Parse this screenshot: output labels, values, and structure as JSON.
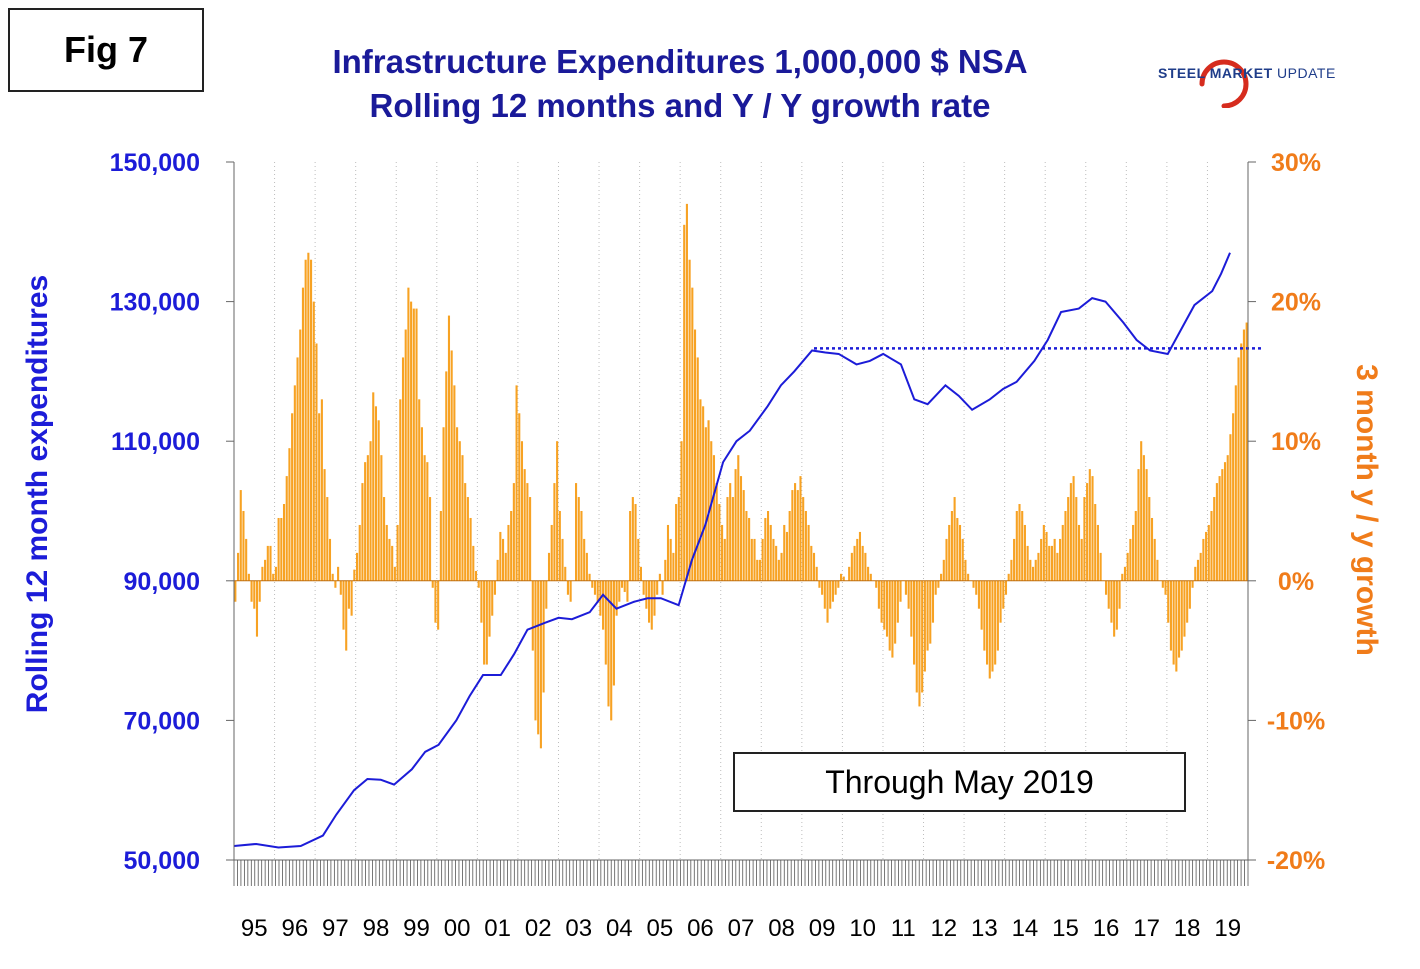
{
  "figure": {
    "label": "Fig 7",
    "title_line1": "Infrastructure Expenditures 1,000,000 $ NSA",
    "title_line2": "Rolling 12 months and Y / Y growth rate",
    "logo_bold": "STEEL MARKET",
    "logo_light": "UPDATE",
    "note": "Through May 2019"
  },
  "chart_data": {
    "type": "bar",
    "left_axis": {
      "label": "Rolling 12 month expenditures",
      "min": 50000,
      "max": 150000,
      "ticks": [
        "50,000",
        "70,000",
        "90,000",
        "110,000",
        "130,000",
        "150,000"
      ],
      "color": "#1c1cd8"
    },
    "right_axis": {
      "label": "3 month y / y growth",
      "min": -20,
      "max": 30,
      "ticks": [
        "-20%",
        "-10%",
        "0%",
        "10%",
        "20%",
        "30%"
      ],
      "color": "#f07c1a"
    },
    "x_axis": {
      "categories": [
        "95",
        "96",
        "97",
        "98",
        "99",
        "00",
        "01",
        "02",
        "03",
        "04",
        "05",
        "06",
        "07",
        "08",
        "09",
        "10",
        "11",
        "12",
        "13",
        "14",
        "15",
        "16",
        "17",
        "18",
        "19"
      ]
    },
    "grid": "vertical-dotted",
    "series": [
      {
        "name": "Rolling 12 month expenditures",
        "type": "line",
        "axis": "left",
        "color": "#1c1cd8",
        "points": [
          [
            1995.0,
            52000
          ],
          [
            1995.5,
            52300
          ],
          [
            1996.0,
            51800
          ],
          [
            1996.5,
            52000
          ],
          [
            1997.0,
            53500
          ],
          [
            1997.3,
            56500
          ],
          [
            1997.7,
            60000
          ],
          [
            1998.0,
            61600
          ],
          [
            1998.3,
            61500
          ],
          [
            1998.6,
            60800
          ],
          [
            1999.0,
            63000
          ],
          [
            1999.3,
            65500
          ],
          [
            1999.6,
            66500
          ],
          [
            2000.0,
            70000
          ],
          [
            2000.3,
            73500
          ],
          [
            2000.6,
            76500
          ],
          [
            2001.0,
            76500
          ],
          [
            2001.3,
            79500
          ],
          [
            2001.6,
            83000
          ],
          [
            2002.0,
            84000
          ],
          [
            2002.3,
            84700
          ],
          [
            2002.6,
            84500
          ],
          [
            2003.0,
            85500
          ],
          [
            2003.3,
            88000
          ],
          [
            2003.6,
            86000
          ],
          [
            2004.0,
            87000
          ],
          [
            2004.3,
            87500
          ],
          [
            2004.6,
            87500
          ],
          [
            2005.0,
            86500
          ],
          [
            2005.3,
            93000
          ],
          [
            2005.6,
            98000
          ],
          [
            2006.0,
            107000
          ],
          [
            2006.3,
            110000
          ],
          [
            2006.6,
            111500
          ],
          [
            2007.0,
            115000
          ],
          [
            2007.3,
            118000
          ],
          [
            2007.6,
            120000
          ],
          [
            2008.0,
            123000
          ],
          [
            2008.3,
            122700
          ],
          [
            2008.6,
            122500
          ],
          [
            2009.0,
            121000
          ],
          [
            2009.3,
            121500
          ],
          [
            2009.6,
            122500
          ],
          [
            2010.0,
            121000
          ],
          [
            2010.3,
            116000
          ],
          [
            2010.6,
            115300
          ],
          [
            2011.0,
            118000
          ],
          [
            2011.3,
            116500
          ],
          [
            2011.6,
            114500
          ],
          [
            2012.0,
            116000
          ],
          [
            2012.3,
            117500
          ],
          [
            2012.6,
            118500
          ],
          [
            2013.0,
            121500
          ],
          [
            2013.3,
            124500
          ],
          [
            2013.6,
            128500
          ],
          [
            2014.0,
            129000
          ],
          [
            2014.3,
            130500
          ],
          [
            2014.6,
            130000
          ],
          [
            2015.0,
            127000
          ],
          [
            2015.3,
            124500
          ],
          [
            2015.6,
            123000
          ],
          [
            2016.0,
            122500
          ],
          [
            2016.3,
            126000
          ],
          [
            2016.6,
            129500
          ],
          [
            2017.0,
            131500
          ],
          [
            2017.2,
            134000
          ],
          [
            2017.4,
            137000
          ]
        ]
      },
      {
        "name": "3 month y / y growth",
        "type": "bar",
        "axis": "right",
        "color": "#f7a223",
        "values": [
          -1.5,
          2,
          6.5,
          5,
          3,
          0.5,
          -1.5,
          -2,
          -4,
          -1.5,
          1,
          1.5,
          2.5,
          2.5,
          0.5,
          1,
          4.5,
          4.5,
          5.5,
          7.5,
          9.5,
          12,
          14,
          16,
          18,
          21,
          23,
          23.5,
          23,
          20,
          17,
          12,
          13,
          8,
          6,
          3,
          0.5,
          -0.5,
          1,
          -1,
          -3.5,
          -5,
          -2,
          -2.5,
          0.8,
          2,
          4,
          7,
          8.5,
          9,
          10,
          13.5,
          12.5,
          11.5,
          9,
          6,
          4,
          3,
          2.5,
          1,
          4,
          13,
          16,
          18,
          21,
          20,
          19.5,
          19.5,
          13,
          11,
          9,
          8.5,
          6,
          -0.5,
          -3,
          -3.5,
          5,
          11,
          15,
          19,
          16.5,
          14,
          11,
          10,
          9,
          7,
          6,
          4.5,
          2.5,
          0.7,
          -0.5,
          -3,
          -6,
          -6,
          -4,
          -2.5,
          -1,
          1.5,
          3.5,
          3,
          2,
          4,
          5,
          7,
          14,
          12,
          10,
          8,
          7,
          6,
          -5,
          -10,
          -11,
          -12,
          -8,
          -2,
          2,
          4,
          7,
          10,
          5,
          3,
          1,
          -1,
          -1.5,
          0,
          7,
          6,
          5,
          3,
          2,
          0.5,
          -0.5,
          -1,
          -1.5,
          -2.5,
          -3.5,
          -6,
          -9,
          -10,
          -7.5,
          -2.5,
          -1.5,
          -0.5,
          -0.8,
          -1.5,
          5,
          6,
          5.5,
          3,
          1,
          -1,
          -2,
          -3,
          -3.5,
          -2.5,
          -1,
          0.5,
          -1,
          1.5,
          4,
          3,
          2,
          5.5,
          6,
          10,
          25.5,
          27,
          23,
          21,
          18,
          16,
          13,
          12.5,
          11,
          11.5,
          10,
          9,
          7,
          5.5,
          4,
          3,
          6,
          7,
          6,
          8,
          9,
          7.5,
          6.5,
          5,
          4.5,
          3,
          3,
          1.5,
          1.5,
          3,
          4.5,
          5,
          4,
          3,
          2.5,
          1.5,
          2,
          4,
          3.5,
          5,
          6.5,
          7,
          6.5,
          7.5,
          6,
          5,
          4,
          2.5,
          2,
          1,
          -0.5,
          -1,
          -2,
          -3,
          -2,
          -1.5,
          -1,
          -0.5,
          0.5,
          0.3,
          0,
          1,
          2,
          2.5,
          3,
          3.5,
          2.5,
          2,
          1,
          0.5,
          0,
          -0.5,
          -2,
          -3,
          -3.5,
          -4,
          -5,
          -5.5,
          -4.5,
          -3,
          -1.5,
          0,
          -1,
          -2,
          -4,
          -6,
          -8,
          -9,
          -8,
          -6.5,
          -5,
          -4.5,
          -3,
          -1,
          -0.5,
          0.5,
          1.5,
          3,
          4,
          5,
          6,
          4.5,
          4,
          3,
          1.5,
          0.5,
          0,
          -0.5,
          -1,
          -2,
          -3.5,
          -5,
          -6,
          -7,
          -6.5,
          -6,
          -5,
          -3,
          -2,
          -1,
          0.5,
          1.5,
          3,
          5,
          5.5,
          5,
          4,
          2.5,
          1.5,
          1,
          1.5,
          2,
          3,
          4,
          3.5,
          2.5,
          2.5,
          3,
          2,
          3,
          4,
          5,
          6,
          7,
          7.5,
          6,
          4,
          3,
          6,
          7,
          8,
          7.5,
          5.5,
          4,
          2,
          0,
          -1,
          -2,
          -3,
          -4,
          -3.5,
          -2,
          0.5,
          1,
          2,
          3,
          4,
          5,
          8,
          10,
          9,
          8,
          6,
          4.5,
          3,
          1.5,
          0,
          -0.5,
          -1,
          -3,
          -5,
          -6,
          -6.5,
          -5.5,
          -5,
          -4,
          -3,
          -2,
          -0.5,
          1,
          1.5,
          2,
          3,
          3.5,
          4,
          5,
          6,
          7,
          7.5,
          8,
          8.5,
          9,
          10.5,
          12,
          14,
          16,
          17,
          18,
          18.5
        ]
      },
      {
        "name": "Reference level",
        "type": "dotted-line",
        "axis": "left",
        "color": "#1c1cd8",
        "x": [
          2009.0,
          2019.7
        ],
        "y": 123300
      }
    ]
  }
}
